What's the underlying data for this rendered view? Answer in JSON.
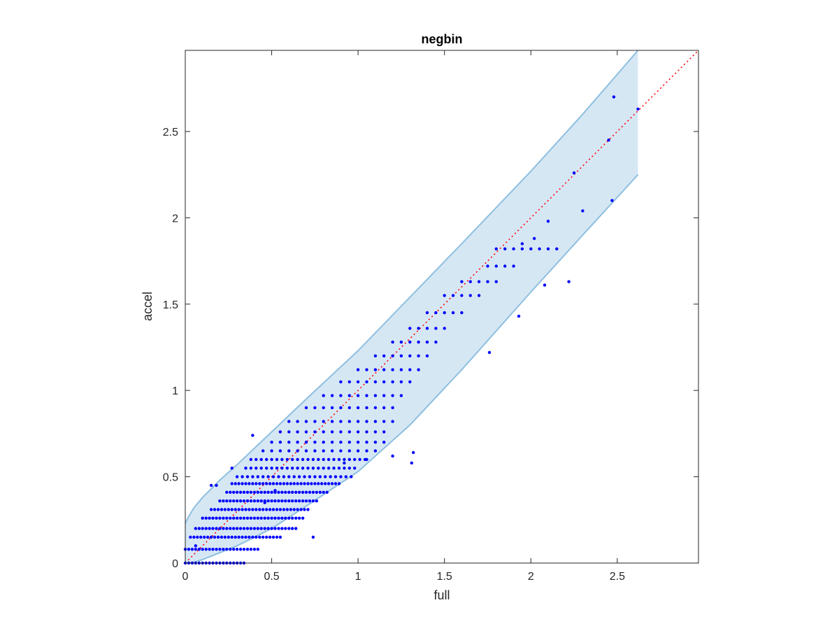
{
  "chart_data": {
    "type": "scatter",
    "title": "negbin",
    "xlabel": "full",
    "ylabel": "accel",
    "xlim": [
      0,
      2.97
    ],
    "ylim": [
      0,
      2.97
    ],
    "xticks": [
      0,
      0.5,
      1,
      1.5,
      2,
      2.5
    ],
    "yticks": [
      0,
      0.5,
      1,
      1.5,
      2,
      2.5
    ],
    "xtick_labels": [
      "0",
      "0.5",
      "1",
      "1.5",
      "2",
      "2.5"
    ],
    "ytick_labels": [
      "0",
      "0.5",
      "1",
      "1.5",
      "2",
      "2.5"
    ],
    "grid": false,
    "legend": "none",
    "colors": {
      "points": "#0000ff",
      "band_fill": "#d6e7f4",
      "band_edge": "#8dbfe0",
      "identity_line": "#ff0000",
      "axes": "#262626"
    },
    "identity_line": {
      "x": [
        0,
        2.97
      ],
      "y": [
        0,
        2.97
      ],
      "style": "dotted"
    },
    "band": {
      "x": [
        0,
        0.02,
        0.05,
        0.1,
        0.2,
        0.3,
        0.5,
        0.7,
        1.0,
        1.3,
        1.6,
        2.0,
        2.3,
        2.62
      ],
      "upper": [
        0.23,
        0.27,
        0.32,
        0.38,
        0.48,
        0.57,
        0.76,
        0.95,
        1.23,
        1.54,
        1.85,
        2.27,
        2.6,
        2.97
      ],
      "lower": [
        0,
        0,
        0.005,
        0.02,
        0.06,
        0.1,
        0.2,
        0.33,
        0.53,
        0.8,
        1.12,
        1.57,
        1.9,
        2.25
      ]
    },
    "series": [
      {
        "type": "scatter",
        "x": [
          0.0,
          0.02,
          0.04,
          0.06,
          0.08,
          0.1,
          0.12,
          0.14,
          0.16,
          0.18,
          0.2,
          0.22,
          0.24,
          0.26,
          0.28,
          0.3,
          0.32,
          0.34,
          0.0,
          0.02,
          0.04,
          0.06,
          0.08,
          0.1,
          0.12,
          0.14,
          0.16,
          0.18,
          0.2,
          0.22,
          0.24,
          0.26,
          0.28,
          0.3,
          0.32,
          0.34,
          0.36,
          0.38,
          0.4,
          0.42,
          0.03,
          0.05,
          0.07,
          0.09,
          0.11,
          0.13,
          0.15,
          0.17,
          0.19,
          0.21,
          0.23,
          0.25,
          0.27,
          0.29,
          0.31,
          0.33,
          0.35,
          0.37,
          0.39,
          0.41,
          0.43,
          0.45,
          0.47,
          0.49,
          0.51,
          0.53,
          0.55,
          0.06,
          0.08,
          0.1,
          0.12,
          0.14,
          0.16,
          0.18,
          0.2,
          0.22,
          0.24,
          0.26,
          0.28,
          0.3,
          0.32,
          0.34,
          0.36,
          0.38,
          0.4,
          0.42,
          0.44,
          0.46,
          0.48,
          0.5,
          0.52,
          0.54,
          0.56,
          0.58,
          0.6,
          0.62,
          0.64,
          0.1,
          0.12,
          0.14,
          0.16,
          0.18,
          0.2,
          0.22,
          0.24,
          0.26,
          0.28,
          0.3,
          0.32,
          0.34,
          0.36,
          0.38,
          0.4,
          0.42,
          0.44,
          0.46,
          0.48,
          0.5,
          0.52,
          0.54,
          0.56,
          0.58,
          0.6,
          0.62,
          0.64,
          0.66,
          0.68,
          0.15,
          0.17,
          0.19,
          0.21,
          0.23,
          0.25,
          0.27,
          0.29,
          0.31,
          0.33,
          0.35,
          0.37,
          0.39,
          0.41,
          0.43,
          0.45,
          0.47,
          0.49,
          0.51,
          0.53,
          0.55,
          0.57,
          0.59,
          0.61,
          0.63,
          0.65,
          0.67,
          0.69,
          0.71,
          0.2,
          0.22,
          0.24,
          0.26,
          0.28,
          0.3,
          0.32,
          0.34,
          0.36,
          0.38,
          0.4,
          0.42,
          0.44,
          0.46,
          0.48,
          0.5,
          0.52,
          0.54,
          0.56,
          0.58,
          0.6,
          0.62,
          0.64,
          0.66,
          0.68,
          0.7,
          0.72,
          0.74,
          0.76,
          0.24,
          0.26,
          0.28,
          0.3,
          0.32,
          0.34,
          0.36,
          0.38,
          0.4,
          0.42,
          0.44,
          0.46,
          0.48,
          0.5,
          0.52,
          0.54,
          0.56,
          0.58,
          0.6,
          0.62,
          0.64,
          0.66,
          0.68,
          0.7,
          0.72,
          0.74,
          0.76,
          0.78,
          0.8,
          0.82,
          0.27,
          0.29,
          0.31,
          0.33,
          0.35,
          0.37,
          0.39,
          0.41,
          0.43,
          0.45,
          0.47,
          0.49,
          0.51,
          0.53,
          0.55,
          0.57,
          0.59,
          0.61,
          0.63,
          0.65,
          0.67,
          0.69,
          0.71,
          0.73,
          0.75,
          0.77,
          0.79,
          0.81,
          0.83,
          0.85,
          0.87,
          0.89,
          0.3,
          0.33,
          0.36,
          0.39,
          0.42,
          0.45,
          0.48,
          0.51,
          0.54,
          0.57,
          0.6,
          0.63,
          0.66,
          0.69,
          0.72,
          0.75,
          0.78,
          0.81,
          0.84,
          0.87,
          0.9,
          0.93,
          0.96,
          0.35,
          0.38,
          0.41,
          0.44,
          0.47,
          0.5,
          0.53,
          0.56,
          0.59,
          0.62,
          0.65,
          0.68,
          0.71,
          0.74,
          0.77,
          0.8,
          0.83,
          0.86,
          0.89,
          0.92,
          0.95,
          0.98,
          0.38,
          0.41,
          0.44,
          0.47,
          0.5,
          0.53,
          0.56,
          0.59,
          0.62,
          0.65,
          0.68,
          0.71,
          0.74,
          0.77,
          0.8,
          0.83,
          0.86,
          0.89,
          0.92,
          0.95,
          0.98,
          1.01,
          1.04,
          0.45,
          0.5,
          0.55,
          0.6,
          0.65,
          0.7,
          0.75,
          0.8,
          0.85,
          0.9,
          0.95,
          1.0,
          1.05,
          1.1,
          0.5,
          0.55,
          0.6,
          0.65,
          0.7,
          0.75,
          0.8,
          0.85,
          0.9,
          0.95,
          1.0,
          1.05,
          1.1,
          1.15,
          0.55,
          0.6,
          0.65,
          0.7,
          0.75,
          0.8,
          0.85,
          0.9,
          0.95,
          1.0,
          1.05,
          1.1,
          1.15,
          0.6,
          0.65,
          0.7,
          0.75,
          0.8,
          0.85,
          0.9,
          0.95,
          1.0,
          1.05,
          1.1,
          1.15,
          1.2,
          0.7,
          0.75,
          0.8,
          0.85,
          0.9,
          0.95,
          1.0,
          1.05,
          1.1,
          1.15,
          1.2,
          0.8,
          0.85,
          0.9,
          0.95,
          1.0,
          1.05,
          1.1,
          1.15,
          1.2,
          1.25,
          0.9,
          0.95,
          1.0,
          1.05,
          1.1,
          1.15,
          1.2,
          1.25,
          1.3,
          1.0,
          1.05,
          1.1,
          1.15,
          1.2,
          1.25,
          1.3,
          1.35,
          1.1,
          1.15,
          1.2,
          1.25,
          1.3,
          1.35,
          1.4,
          1.2,
          1.25,
          1.3,
          1.35,
          1.4,
          1.45,
          1.3,
          1.35,
          1.4,
          1.45,
          1.5,
          1.4,
          1.45,
          1.5,
          1.55,
          1.6,
          1.5,
          1.55,
          1.6,
          1.65,
          1.7,
          1.6,
          1.65,
          1.7,
          1.75,
          1.8,
          1.75,
          1.8,
          1.85,
          1.9,
          1.8,
          1.85,
          1.9,
          1.95,
          2.0,
          2.05,
          2.1,
          2.15,
          1.95,
          2.02,
          2.1,
          2.3,
          2.45,
          2.48,
          2.62,
          2.25,
          2.47,
          2.08,
          2.22,
          1.93,
          1.76,
          1.32,
          1.31,
          1.2,
          1.05,
          0.92,
          0.74,
          0.46,
          0.52,
          0.27,
          0.39,
          0.06,
          0.15,
          0.18
        ],
        "y": [
          0.0,
          0.0,
          0.0,
          0.0,
          0.0,
          0.0,
          0.0,
          0.0,
          0.0,
          0.0,
          0.0,
          0.0,
          0.0,
          0.0,
          0.0,
          0.0,
          0.0,
          0.0,
          0.08,
          0.08,
          0.08,
          0.08,
          0.08,
          0.08,
          0.08,
          0.08,
          0.08,
          0.08,
          0.08,
          0.08,
          0.08,
          0.08,
          0.08,
          0.08,
          0.08,
          0.08,
          0.08,
          0.08,
          0.08,
          0.08,
          0.15,
          0.15,
          0.15,
          0.15,
          0.15,
          0.15,
          0.15,
          0.15,
          0.15,
          0.15,
          0.15,
          0.15,
          0.15,
          0.15,
          0.15,
          0.15,
          0.15,
          0.15,
          0.15,
          0.15,
          0.15,
          0.15,
          0.15,
          0.15,
          0.15,
          0.15,
          0.15,
          0.2,
          0.2,
          0.2,
          0.2,
          0.2,
          0.2,
          0.2,
          0.2,
          0.2,
          0.2,
          0.2,
          0.2,
          0.2,
          0.2,
          0.2,
          0.2,
          0.2,
          0.2,
          0.2,
          0.2,
          0.2,
          0.2,
          0.2,
          0.2,
          0.2,
          0.2,
          0.2,
          0.2,
          0.2,
          0.2,
          0.26,
          0.26,
          0.26,
          0.26,
          0.26,
          0.26,
          0.26,
          0.26,
          0.26,
          0.26,
          0.26,
          0.26,
          0.26,
          0.26,
          0.26,
          0.26,
          0.26,
          0.26,
          0.26,
          0.26,
          0.26,
          0.26,
          0.26,
          0.26,
          0.26,
          0.26,
          0.26,
          0.26,
          0.26,
          0.26,
          0.31,
          0.31,
          0.31,
          0.31,
          0.31,
          0.31,
          0.31,
          0.31,
          0.31,
          0.31,
          0.31,
          0.31,
          0.31,
          0.31,
          0.31,
          0.31,
          0.31,
          0.31,
          0.31,
          0.31,
          0.31,
          0.31,
          0.31,
          0.31,
          0.31,
          0.31,
          0.31,
          0.31,
          0.31,
          0.36,
          0.36,
          0.36,
          0.36,
          0.36,
          0.36,
          0.36,
          0.36,
          0.36,
          0.36,
          0.36,
          0.36,
          0.36,
          0.36,
          0.36,
          0.36,
          0.36,
          0.36,
          0.36,
          0.36,
          0.36,
          0.36,
          0.36,
          0.36,
          0.36,
          0.36,
          0.36,
          0.36,
          0.36,
          0.41,
          0.41,
          0.41,
          0.41,
          0.41,
          0.41,
          0.41,
          0.41,
          0.41,
          0.41,
          0.41,
          0.41,
          0.41,
          0.41,
          0.41,
          0.41,
          0.41,
          0.41,
          0.41,
          0.41,
          0.41,
          0.41,
          0.41,
          0.41,
          0.41,
          0.41,
          0.41,
          0.41,
          0.41,
          0.41,
          0.46,
          0.46,
          0.46,
          0.46,
          0.46,
          0.46,
          0.46,
          0.46,
          0.46,
          0.46,
          0.46,
          0.46,
          0.46,
          0.46,
          0.46,
          0.46,
          0.46,
          0.46,
          0.46,
          0.46,
          0.46,
          0.46,
          0.46,
          0.46,
          0.46,
          0.46,
          0.46,
          0.46,
          0.46,
          0.46,
          0.46,
          0.46,
          0.5,
          0.5,
          0.5,
          0.5,
          0.5,
          0.5,
          0.5,
          0.5,
          0.5,
          0.5,
          0.5,
          0.5,
          0.5,
          0.5,
          0.5,
          0.5,
          0.5,
          0.5,
          0.5,
          0.5,
          0.5,
          0.5,
          0.5,
          0.55,
          0.55,
          0.55,
          0.55,
          0.55,
          0.55,
          0.55,
          0.55,
          0.55,
          0.55,
          0.55,
          0.55,
          0.55,
          0.55,
          0.55,
          0.55,
          0.55,
          0.55,
          0.55,
          0.55,
          0.55,
          0.55,
          0.6,
          0.6,
          0.6,
          0.6,
          0.6,
          0.6,
          0.6,
          0.6,
          0.6,
          0.6,
          0.6,
          0.6,
          0.6,
          0.6,
          0.6,
          0.6,
          0.6,
          0.6,
          0.6,
          0.6,
          0.6,
          0.6,
          0.6,
          0.65,
          0.65,
          0.65,
          0.65,
          0.65,
          0.65,
          0.65,
          0.65,
          0.65,
          0.65,
          0.65,
          0.65,
          0.65,
          0.65,
          0.7,
          0.7,
          0.7,
          0.7,
          0.7,
          0.7,
          0.7,
          0.7,
          0.7,
          0.7,
          0.7,
          0.7,
          0.7,
          0.7,
          0.76,
          0.76,
          0.76,
          0.76,
          0.76,
          0.76,
          0.76,
          0.76,
          0.76,
          0.76,
          0.76,
          0.76,
          0.76,
          0.82,
          0.82,
          0.82,
          0.82,
          0.82,
          0.82,
          0.82,
          0.82,
          0.82,
          0.82,
          0.82,
          0.82,
          0.82,
          0.9,
          0.9,
          0.9,
          0.9,
          0.9,
          0.9,
          0.9,
          0.9,
          0.9,
          0.9,
          0.9,
          0.97,
          0.97,
          0.97,
          0.97,
          0.97,
          0.97,
          0.97,
          0.97,
          0.97,
          0.97,
          1.05,
          1.05,
          1.05,
          1.05,
          1.05,
          1.05,
          1.05,
          1.05,
          1.05,
          1.12,
          1.12,
          1.12,
          1.12,
          1.12,
          1.12,
          1.12,
          1.12,
          1.2,
          1.2,
          1.2,
          1.2,
          1.2,
          1.2,
          1.2,
          1.28,
          1.28,
          1.28,
          1.28,
          1.28,
          1.28,
          1.36,
          1.36,
          1.36,
          1.36,
          1.36,
          1.45,
          1.45,
          1.45,
          1.45,
          1.45,
          1.55,
          1.55,
          1.55,
          1.55,
          1.55,
          1.63,
          1.63,
          1.63,
          1.63,
          1.63,
          1.72,
          1.72,
          1.72,
          1.72,
          1.82,
          1.82,
          1.82,
          1.82,
          1.82,
          1.82,
          1.82,
          1.82,
          1.85,
          1.88,
          1.98,
          2.04,
          2.45,
          2.7,
          2.63,
          2.26,
          2.1,
          1.61,
          1.63,
          1.43,
          1.22,
          0.64,
          0.58,
          0.62,
          0.6,
          0.58,
          0.15,
          0.35,
          0.42,
          0.55,
          0.74,
          0.1,
          0.45,
          0.45
        ]
      }
    ]
  }
}
